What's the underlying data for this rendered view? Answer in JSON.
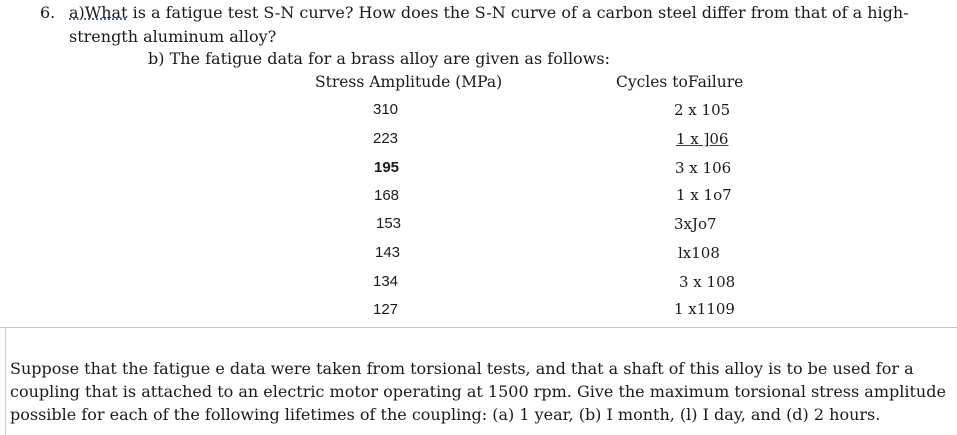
{
  "question": {
    "number": "6.",
    "part_a_marker": "a)",
    "part_a_first_word": "What",
    "part_a_line1_rest": " is a fatigue test S-N curve? How does the S-N curve of a carbon steel differ from that of a high-",
    "part_a_line2": "strength aluminum alloy?",
    "part_b": "b) The fatigue data for a brass alloy are given as follows:"
  },
  "table": {
    "headers": {
      "stress": "Stress Amplitude (MPa)",
      "cycles": "Cycles toFailure"
    },
    "rows": [
      {
        "stress": "310",
        "cycles": "2 x 105"
      },
      {
        "stress": "223",
        "cycles": "1 x ]06"
      },
      {
        "stress": "195",
        "cycles": "3 x 106"
      },
      {
        "stress": "168",
        "cycles": "1 x 1o7"
      },
      {
        "stress": "153",
        "cycles": "3xJo7"
      },
      {
        "stress": "143",
        "cycles": "lx108"
      },
      {
        "stress": "134",
        "cycles": "3 x 108"
      },
      {
        "stress": "127",
        "cycles": "1 x1109"
      }
    ]
  },
  "paragraph": {
    "line1": "Suppose that the fatigue e data were taken from torsional tests, and that a shaft of this alloy is to be used for a",
    "line2": "coupling that is attached to an electric motor operating at 1500 rpm. Give the maximum torsional stress amplitude",
    "line3": "possible for each of the following lifetimes of the coupling: (a) 1 year, (b) I month, (l) I day, and (d) 2 hours."
  }
}
